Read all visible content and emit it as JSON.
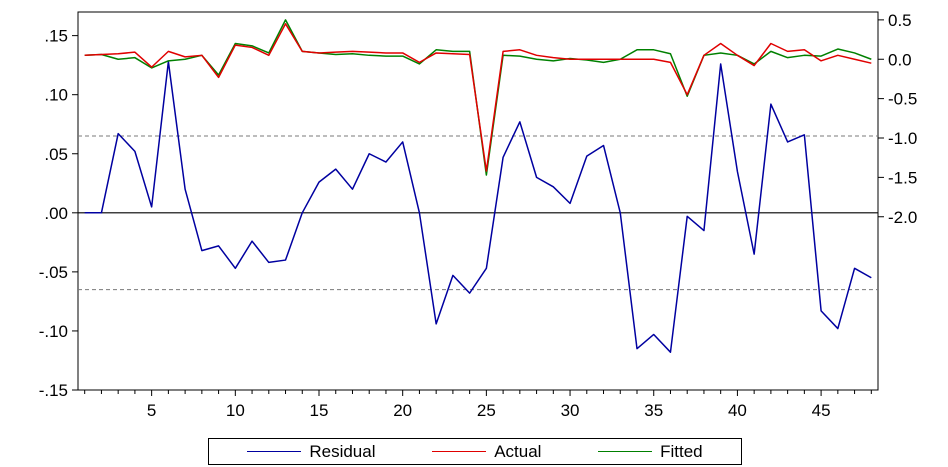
{
  "chart_data": {
    "type": "line",
    "x": [
      1,
      2,
      3,
      4,
      5,
      6,
      7,
      8,
      9,
      10,
      11,
      12,
      13,
      14,
      15,
      16,
      17,
      18,
      19,
      20,
      21,
      22,
      23,
      24,
      25,
      26,
      27,
      28,
      29,
      30,
      31,
      32,
      33,
      34,
      35,
      36,
      37,
      38,
      39,
      40,
      41,
      42,
      43,
      44,
      45,
      46,
      47,
      48
    ],
    "x_ticks": [
      "5",
      "10",
      "15",
      "20",
      "25",
      "30",
      "35",
      "40",
      "45"
    ],
    "x_tick_values": [
      5,
      10,
      15,
      20,
      25,
      30,
      35,
      40,
      45
    ],
    "left_axis": {
      "range": [
        -0.15,
        0.17
      ],
      "ticks": [
        ".15",
        ".10",
        ".05",
        ".00",
        "-.05",
        "-.10",
        "-.15"
      ],
      "tick_values": [
        0.15,
        0.1,
        0.05,
        0.0,
        -0.05,
        -0.1,
        -0.15
      ]
    },
    "right_axis": {
      "range": [
        -4.2,
        0.6
      ],
      "ticks": [
        "0.5",
        "0.0",
        "-0.5",
        "-1.0",
        "-1.5",
        "-2.0"
      ],
      "tick_values": [
        0.5,
        0.0,
        -0.5,
        -1.0,
        -1.5,
        -2.0
      ]
    },
    "zero_line": 0.0,
    "reference_lines": [
      0.065,
      -0.065
    ],
    "series": [
      {
        "name": "Residual",
        "axis": "left",
        "color": "#0000a0",
        "values": [
          0.0,
          0.0,
          0.067,
          0.052,
          0.005,
          0.128,
          0.02,
          -0.032,
          -0.028,
          -0.047,
          -0.024,
          -0.042,
          -0.04,
          0.0,
          0.026,
          0.037,
          0.02,
          0.05,
          0.043,
          0.06,
          0.0,
          -0.094,
          -0.053,
          -0.068,
          -0.047,
          0.047,
          0.077,
          0.03,
          0.022,
          0.008,
          0.048,
          0.057,
          0.0,
          -0.115,
          -0.103,
          -0.118,
          -0.003,
          -0.015,
          0.126,
          0.035,
          -0.035,
          0.092,
          0.06,
          0.066,
          -0.083,
          -0.098,
          -0.047,
          -0.055
        ]
      },
      {
        "name": "Actual",
        "axis": "right",
        "color": "#e00000",
        "values": [
          0.05,
          0.06,
          0.07,
          0.09,
          -0.1,
          0.1,
          0.03,
          0.05,
          -0.23,
          0.18,
          0.15,
          0.05,
          0.45,
          0.1,
          0.08,
          0.09,
          0.1,
          0.09,
          0.08,
          0.08,
          -0.04,
          0.08,
          0.07,
          0.06,
          -1.42,
          0.1,
          0.12,
          0.05,
          0.02,
          0.0,
          0.0,
          0.0,
          0.0,
          0.0,
          0.0,
          -0.04,
          -0.45,
          0.05,
          0.2,
          0.05,
          -0.08,
          0.2,
          0.1,
          0.12,
          -0.02,
          0.05,
          0.0,
          -0.05
        ]
      },
      {
        "name": "Fitted",
        "axis": "right",
        "color": "#008000",
        "values": [
          0.05,
          0.06,
          0.0,
          0.02,
          -0.11,
          -0.02,
          0.0,
          0.05,
          -0.2,
          0.2,
          0.17,
          0.08,
          0.5,
          0.1,
          0.08,
          0.06,
          0.07,
          0.05,
          0.04,
          0.04,
          -0.06,
          0.12,
          0.1,
          0.1,
          -1.47,
          0.05,
          0.04,
          0.0,
          -0.02,
          0.01,
          -0.01,
          -0.04,
          0.0,
          0.12,
          0.12,
          0.07,
          -0.47,
          0.05,
          0.08,
          0.05,
          -0.06,
          0.1,
          0.02,
          0.05,
          0.04,
          0.13,
          0.08,
          0.0
        ]
      }
    ],
    "legend": {
      "placement": "bottom-center",
      "entries": [
        "Residual",
        "Actual",
        "Fitted"
      ]
    },
    "grid": false,
    "title": "",
    "xlabel": "",
    "ylabel": ""
  }
}
